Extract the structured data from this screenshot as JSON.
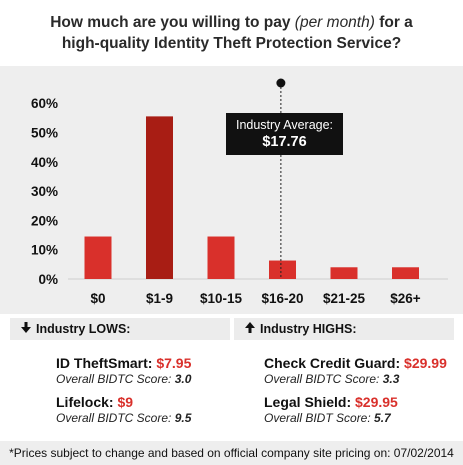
{
  "header": {
    "title_part1": "How much are you willing to pay",
    "title_em": "(per month)",
    "title_part2": "for a",
    "title_line2": "high-quality Identity Theft Protection Service?"
  },
  "chart_data": {
    "type": "bar",
    "title": "How much are you willing to pay (per month) for a high-quality Identity Theft Protection Service?",
    "categories": [
      "$0",
      "$1-9",
      "$10-15",
      "$16-20",
      "$21-25",
      "$26+"
    ],
    "values": [
      14.5,
      55.5,
      14.5,
      6.3,
      4,
      4
    ],
    "ylim": [
      0,
      60
    ],
    "yticks": [
      "0%",
      "10%",
      "20%",
      "30%",
      "40%",
      "50%",
      "60%"
    ],
    "ytick_values": [
      0,
      10,
      20,
      30,
      40,
      50,
      60
    ],
    "xlabel": "",
    "ylabel": "",
    "grid": false,
    "colors": {
      "bar": "#d9302b",
      "bar_highlight": "#a81d14",
      "highlight_index": 1,
      "panel": "#eeeeee"
    },
    "annotation": {
      "label": "Industry Average:",
      "value": "$17.76",
      "x_value": 17.76
    }
  },
  "lows": {
    "header": "Industry LOWS:",
    "icon": "arrow-down-icon",
    "items": [
      {
        "name": "ID TheftSmart:",
        "price": "$7.95",
        "score_label": "Overall BIDTC Score:",
        "score": "3.0"
      },
      {
        "name": "Lifelock:",
        "price": "$9",
        "score_label": "Overall BIDTC Score:",
        "score": "9.5"
      }
    ]
  },
  "highs": {
    "header": "Industry HIGHS:",
    "icon": "arrow-up-icon",
    "items": [
      {
        "name": "Check Credit Guard:",
        "price": "$29.99",
        "score_label": "Overall BIDTC Score:",
        "score": "3.3"
      },
      {
        "name": "Legal Shield:",
        "price": "$29.95",
        "score_label": "Overall BIDT Score:",
        "score": "5.7"
      }
    ]
  },
  "footnote": "*Prices subject to change and based on official company site pricing on:  07/02/2014"
}
